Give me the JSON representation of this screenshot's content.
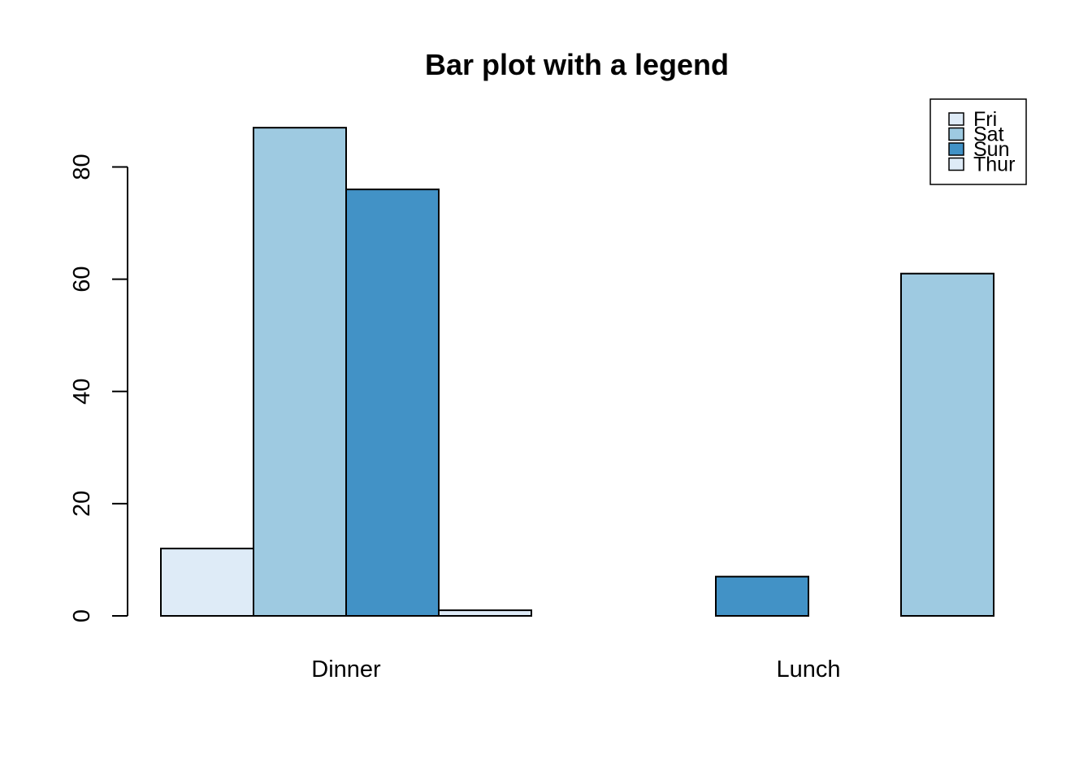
{
  "chart_data": {
    "type": "bar",
    "mode": "grouped",
    "title": "Bar plot with a legend",
    "xlabel": "",
    "ylabel": "",
    "categories": [
      "Dinner",
      "Lunch"
    ],
    "series": [
      {
        "name": "Fri",
        "color": "#DEEBF7",
        "values": [
          12,
          0
        ]
      },
      {
        "name": "Sat",
        "color": "#9ECAE1",
        "values": [
          87,
          7
        ]
      },
      {
        "name": "Sun",
        "color": "#4292C6",
        "values": [
          76,
          0
        ]
      },
      {
        "name": "Thur",
        "color": "#DEEBF7",
        "values": [
          1,
          61
        ]
      }
    ],
    "bar_colors": [
      [
        "#DEEBF7",
        "#9ECAE1",
        "#4292C6",
        "#DEEBF7"
      ],
      [
        "#9ECAE1",
        "#4292C6",
        "#DEEBF7",
        "#9ECAE1"
      ]
    ],
    "ylim": [
      0,
      90
    ],
    "yticks": [
      0,
      20,
      40,
      60,
      80
    ],
    "grid": false,
    "legend_position": "top-right"
  }
}
